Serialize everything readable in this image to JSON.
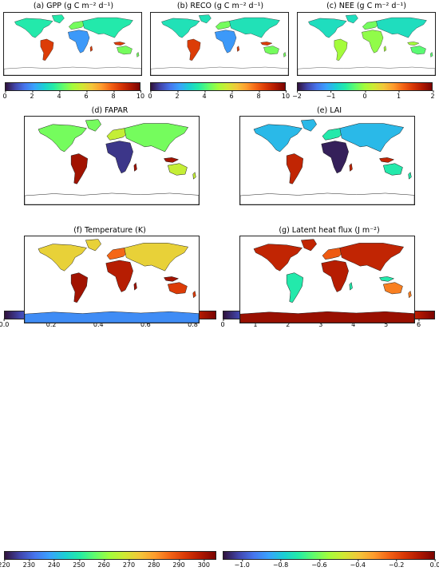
{
  "colors": {
    "cmap": [
      "#30123b",
      "#4145ab",
      "#4675ed",
      "#39a2fc",
      "#1bcfd4",
      "#24eca6",
      "#61fc6c",
      "#a4fc3b",
      "#d1e834",
      "#f3c63a",
      "#fe9b2d",
      "#f36315",
      "#d93806",
      "#b11901",
      "#7a0402"
    ],
    "land_outline": "#1a1a1a",
    "ocean": "#ffffff"
  },
  "panels": [
    {
      "title": "(a) GPP (g C m⁻² d⁻¹)",
      "vmin": 0,
      "vmax": 10,
      "ticks": [
        "0",
        "2",
        "4",
        "6",
        "8",
        "10"
      ],
      "land_level": {
        "north": 0.35,
        "mid": 0.45,
        "tropic": 0.85,
        "desert": 0.2,
        "south": 0.45,
        "antarctic": null
      }
    },
    {
      "title": "(b) RECO (g C m⁻² d⁻¹)",
      "vmin": 0,
      "vmax": 10,
      "ticks": [
        "0",
        "2",
        "4",
        "6",
        "8",
        "10"
      ],
      "land_level": {
        "north": 0.33,
        "mid": 0.45,
        "tropic": 0.85,
        "desert": 0.2,
        "south": 0.45,
        "antarctic": null
      }
    },
    {
      "title": "(c) NEE (g C m⁻² d⁻¹)",
      "vmin": -2,
      "vmax": 2,
      "ticks": [
        "−2",
        "−1",
        "0",
        "1",
        "2"
      ],
      "land_level": {
        "north": 0.32,
        "mid": 0.45,
        "tropic": 0.5,
        "desert": 0.48,
        "south": 0.42,
        "antarctic": null
      }
    },
    {
      "title": "(d) FAPAR",
      "vmin": 0,
      "vmax": 0.9,
      "ticks": [
        "0.0",
        "0.2",
        "0.4",
        "0.6",
        "0.8"
      ],
      "land_level": {
        "north": 0.45,
        "mid": 0.55,
        "tropic": 0.95,
        "desert": 0.05,
        "south": 0.55,
        "antarctic": null
      }
    },
    {
      "title": "(e) LAI",
      "vmin": 0,
      "vmax": 6.5,
      "ticks": [
        "0",
        "1",
        "2",
        "3",
        "4",
        "5",
        "6"
      ],
      "land_level": {
        "north": 0.25,
        "mid": 0.35,
        "tropic": 0.9,
        "desert": 0.02,
        "south": 0.35,
        "antarctic": null
      }
    },
    {
      "title": "(f) Temperature (K)",
      "vmin": 220,
      "vmax": 305,
      "ticks": [
        "220",
        "230",
        "240",
        "250",
        "260",
        "270",
        "280",
        "290",
        "300"
      ],
      "land_level": {
        "north": 0.62,
        "mid": 0.78,
        "tropic": 0.95,
        "desert": 0.92,
        "south": 0.85,
        "antarctic": 0.18
      }
    },
    {
      "title": "(g) Latent heat flux (J m⁻²)",
      "vmin": -1.1,
      "vmax": 0,
      "ticks": [
        "−1.0",
        "−0.8",
        "−0.6",
        "−0.4",
        "−0.2",
        "0.0"
      ],
      "land_level": {
        "north": 0.9,
        "mid": 0.8,
        "tropic": 0.35,
        "desert": 0.92,
        "south": 0.75,
        "antarctic": 0.96
      }
    }
  ]
}
